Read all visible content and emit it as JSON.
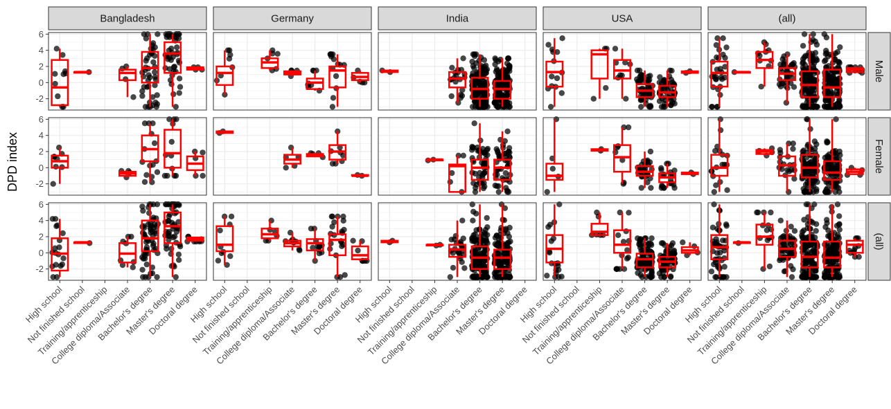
{
  "chart_data": {
    "type": "boxplot",
    "ylabel": "DPD index",
    "xlabel": "",
    "ylim": [
      -3.4,
      6.2
    ],
    "y_ticks": [
      -2,
      0,
      2,
      4,
      6
    ],
    "categories": [
      "High school",
      "Not finished school",
      "Training/apprenticeship",
      "College diploma/Associate",
      "Bachelor's degree",
      "Master's degree",
      "Doctoral degree"
    ],
    "facet_columns": [
      "Bangladesh",
      "Germany",
      "India",
      "USA",
      "(all)"
    ],
    "facet_rows": [
      "Male",
      "Female",
      "(all)"
    ],
    "colors": {
      "box": "#ff0000",
      "points": "#000000",
      "strip_fill": "#d9d9d9",
      "grid": "#ebebeb",
      "panel_border": "#333333"
    },
    "panels": [
      {
        "row": "Male",
        "col": "Bangladesh",
        "boxes": [
          {
            "cat": "High school",
            "min": -3.0,
            "q1": -2.8,
            "median": -0.6,
            "q3": 2.8,
            "max": 4.2,
            "n": 10
          },
          {
            "cat": "Not finished school",
            "min": 1.3,
            "q1": 1.3,
            "median": 1.3,
            "q3": 1.3,
            "max": 1.3,
            "n": 1
          },
          {
            "cat": "College diploma/Associate",
            "min": -1.8,
            "q1": 0.3,
            "median": 1.2,
            "q3": 1.6,
            "max": 2.0,
            "n": 4
          },
          {
            "cat": "Bachelor's degree",
            "min": -3.0,
            "q1": 0.0,
            "median": 1.8,
            "q3": 3.8,
            "max": 6.0,
            "n": 45
          },
          {
            "cat": "Master's degree",
            "min": -3.0,
            "q1": 1.2,
            "median": 3.6,
            "q3": 5.0,
            "max": 6.0,
            "n": 45
          },
          {
            "cat": "Doctoral degree",
            "min": 1.6,
            "q1": 1.6,
            "median": 1.7,
            "q3": 1.9,
            "max": 1.9,
            "n": 4
          }
        ]
      },
      {
        "row": "Male",
        "col": "Germany",
        "boxes": [
          {
            "cat": "High school",
            "min": -1.5,
            "q1": -0.3,
            "median": 1.2,
            "q3": 2.0,
            "max": 4.0,
            "n": 8
          },
          {
            "cat": "Training/apprenticeship",
            "min": 1.5,
            "q1": 1.8,
            "median": 2.5,
            "q3": 3.0,
            "max": 4.0,
            "n": 6
          },
          {
            "cat": "College diploma/Associate",
            "min": 0.8,
            "q1": 1.0,
            "median": 1.2,
            "q3": 1.4,
            "max": 1.5,
            "n": 4
          },
          {
            "cat": "Bachelor's degree",
            "min": -1.0,
            "q1": -0.8,
            "median": 0.0,
            "q3": 0.5,
            "max": 1.5,
            "n": 8
          },
          {
            "cat": "Master's degree",
            "min": -3.0,
            "q1": -0.6,
            "median": 1.5,
            "q3": 2.0,
            "max": 3.5,
            "n": 14
          },
          {
            "cat": "Doctoral degree",
            "min": 0.0,
            "q1": 0.3,
            "median": 0.7,
            "q3": 1.2,
            "max": 1.5,
            "n": 5
          }
        ]
      },
      {
        "row": "Male",
        "col": "India",
        "boxes": [
          {
            "cat": "High school",
            "min": 1.3,
            "q1": 1.3,
            "median": 1.4,
            "q3": 1.5,
            "max": 1.5,
            "n": 2
          },
          {
            "cat": "College diploma/Associate",
            "min": -2.5,
            "q1": -0.6,
            "median": 0.5,
            "q3": 1.3,
            "max": 3.0,
            "n": 20
          },
          {
            "cat": "Bachelor's degree",
            "min": -3.0,
            "q1": -2.0,
            "median": -0.8,
            "q3": 0.6,
            "max": 3.5,
            "n": 200
          },
          {
            "cat": "Master's degree",
            "min": -3.0,
            "q1": -2.0,
            "median": -0.8,
            "q3": 0.2,
            "max": 3.0,
            "n": 200
          }
        ]
      },
      {
        "row": "Male",
        "col": "USA",
        "boxes": [
          {
            "cat": "High school",
            "min": -3.0,
            "q1": -0.5,
            "median": 1.3,
            "q3": 2.6,
            "max": 5.5,
            "n": 14
          },
          {
            "cat": "Training/apprenticeship",
            "min": -2.0,
            "q1": 0.5,
            "median": 3.5,
            "q3": 4.0,
            "max": 4.2,
            "n": 4
          },
          {
            "cat": "College diploma/Associate",
            "min": -2.0,
            "q1": 0.5,
            "median": 1.5,
            "q3": 2.8,
            "max": 4.2,
            "n": 8
          },
          {
            "cat": "Bachelor's degree",
            "min": -3.0,
            "q1": -1.8,
            "median": -1.0,
            "q3": -0.2,
            "max": 1.5,
            "n": 60
          },
          {
            "cat": "Master's degree",
            "min": -3.0,
            "q1": -1.8,
            "median": -1.2,
            "q3": -0.4,
            "max": 1.5,
            "n": 50
          },
          {
            "cat": "Doctoral degree",
            "min": 1.2,
            "q1": 1.2,
            "median": 1.3,
            "q3": 1.4,
            "max": 1.4,
            "n": 2
          }
        ]
      },
      {
        "row": "Male",
        "col": "(all)",
        "boxes": [
          {
            "cat": "High school",
            "min": -3.0,
            "q1": -0.5,
            "median": 1.2,
            "q3": 2.6,
            "max": 5.5,
            "n": 30
          },
          {
            "cat": "Not finished school",
            "min": 1.3,
            "q1": 1.3,
            "median": 1.3,
            "q3": 1.3,
            "max": 1.3,
            "n": 1
          },
          {
            "cat": "Training/apprenticeship",
            "min": -0.5,
            "q1": 1.8,
            "median": 2.8,
            "q3": 3.8,
            "max": 5.0,
            "n": 10
          },
          {
            "cat": "College diploma/Associate",
            "min": -2.5,
            "q1": 0.3,
            "median": 1.1,
            "q3": 1.8,
            "max": 3.5,
            "n": 35
          },
          {
            "cat": "Bachelor's degree",
            "min": -3.0,
            "q1": -1.8,
            "median": -0.3,
            "q3": 1.4,
            "max": 6.0,
            "n": 300
          },
          {
            "cat": "Master's degree",
            "min": -3.0,
            "q1": -1.8,
            "median": -0.6,
            "q3": 1.6,
            "max": 6.0,
            "n": 300
          },
          {
            "cat": "Doctoral degree",
            "min": 1.2,
            "q1": 1.3,
            "median": 1.6,
            "q3": 1.8,
            "max": 1.9,
            "n": 10
          }
        ]
      },
      {
        "row": "Female",
        "col": "Bangladesh",
        "boxes": [
          {
            "cat": "High school",
            "min": -2.0,
            "q1": 0.0,
            "median": 0.8,
            "q3": 1.5,
            "max": 2.5,
            "n": 8
          },
          {
            "cat": "College diploma/Associate",
            "min": -1.2,
            "q1": -1.0,
            "median": -0.7,
            "q3": -0.5,
            "max": -0.4,
            "n": 4
          },
          {
            "cat": "Bachelor's degree",
            "min": -1.8,
            "q1": 0.8,
            "median": 2.3,
            "q3": 4.0,
            "max": 5.5,
            "n": 15
          },
          {
            "cat": "Master's degree",
            "min": -1.0,
            "q1": 0.0,
            "median": 1.8,
            "q3": 4.7,
            "max": 6.0,
            "n": 12
          },
          {
            "cat": "Doctoral degree",
            "min": -1.0,
            "q1": -0.3,
            "median": 0.5,
            "q3": 1.4,
            "max": 2.0,
            "n": 5
          }
        ]
      },
      {
        "row": "Female",
        "col": "Germany",
        "boxes": [
          {
            "cat": "High school",
            "min": 4.3,
            "q1": 4.3,
            "median": 4.4,
            "q3": 4.5,
            "max": 4.5,
            "n": 2
          },
          {
            "cat": "College diploma/Associate",
            "min": 0.0,
            "q1": 0.5,
            "median": 1.0,
            "q3": 1.6,
            "max": 2.5,
            "n": 5
          },
          {
            "cat": "Bachelor's degree",
            "min": 1.3,
            "q1": 1.4,
            "median": 1.6,
            "q3": 1.7,
            "max": 1.8,
            "n": 4
          },
          {
            "cat": "Master's degree",
            "min": 0.5,
            "q1": 1.0,
            "median": 2.0,
            "q3": 2.8,
            "max": 4.5,
            "n": 8
          },
          {
            "cat": "Doctoral degree",
            "min": -1.0,
            "q1": -1.0,
            "median": -1.0,
            "q3": -0.9,
            "max": -0.9,
            "n": 2
          }
        ]
      },
      {
        "row": "Female",
        "col": "India",
        "boxes": [
          {
            "cat": "Training/apprenticeship",
            "min": 0.9,
            "q1": 0.9,
            "median": 1.0,
            "q3": 1.0,
            "max": 1.0,
            "n": 2
          },
          {
            "cat": "College diploma/Associate",
            "min": -3.0,
            "q1": -3.0,
            "median": 0.2,
            "q3": 0.4,
            "max": 1.5,
            "n": 5
          },
          {
            "cat": "Bachelor's degree",
            "min": -3.0,
            "q1": -1.5,
            "median": 0.0,
            "q3": 1.0,
            "max": 5.5,
            "n": 50
          },
          {
            "cat": "Master's degree",
            "min": -3.0,
            "q1": -1.5,
            "median": 0.0,
            "q3": 1.0,
            "max": 4.5,
            "n": 50
          }
        ]
      },
      {
        "row": "Female",
        "col": "USA",
        "boxes": [
          {
            "cat": "High school",
            "min": -3.0,
            "q1": -1.5,
            "median": -1.0,
            "q3": 0.5,
            "max": 6.0,
            "n": 5
          },
          {
            "cat": "Training/apprenticeship",
            "min": 2.1,
            "q1": 2.1,
            "median": 2.2,
            "q3": 2.3,
            "max": 2.3,
            "n": 2
          },
          {
            "cat": "College diploma/Associate",
            "min": -2.0,
            "q1": -0.5,
            "median": 1.3,
            "q3": 2.8,
            "max": 5.0,
            "n": 8
          },
          {
            "cat": "Bachelor's degree",
            "min": -2.5,
            "q1": -1.0,
            "median": -0.5,
            "q3": 0.2,
            "max": 2.0,
            "n": 30
          },
          {
            "cat": "Master's degree",
            "min": -2.5,
            "q1": -1.8,
            "median": -1.2,
            "q3": -0.7,
            "max": 0.5,
            "n": 20
          },
          {
            "cat": "Doctoral degree",
            "min": -0.8,
            "q1": -0.8,
            "median": -0.7,
            "q3": -0.6,
            "max": -0.6,
            "n": 2
          }
        ]
      },
      {
        "row": "Female",
        "col": "(all)",
        "boxes": [
          {
            "cat": "High school",
            "min": -3.0,
            "q1": -1.0,
            "median": 0.0,
            "q3": 1.6,
            "max": 6.0,
            "n": 18
          },
          {
            "cat": "Training/apprenticeship",
            "min": 1.5,
            "q1": 1.7,
            "median": 2.0,
            "q3": 2.2,
            "max": 2.4,
            "n": 4
          },
          {
            "cat": "College diploma/Associate",
            "min": -3.0,
            "q1": -1.0,
            "median": 0.3,
            "q3": 1.4,
            "max": 3.0,
            "n": 20
          },
          {
            "cat": "Bachelor's degree",
            "min": -3.0,
            "q1": -1.2,
            "median": 0.0,
            "q3": 1.6,
            "max": 6.0,
            "n": 100
          },
          {
            "cat": "Master's degree",
            "min": -3.0,
            "q1": -1.5,
            "median": -0.6,
            "q3": 0.8,
            "max": 6.0,
            "n": 90
          },
          {
            "cat": "Doctoral degree",
            "min": -0.9,
            "q1": -0.8,
            "median": -0.5,
            "q3": -0.2,
            "max": 0.0,
            "n": 4
          }
        ]
      },
      {
        "row": "(all)",
        "col": "Bangladesh",
        "boxes": [
          {
            "cat": "High school",
            "min": -3.0,
            "q1": -2.2,
            "median": -0.1,
            "q3": 1.8,
            "max": 4.2,
            "n": 18
          },
          {
            "cat": "Not finished school",
            "min": 1.2,
            "q1": 1.2,
            "median": 1.3,
            "q3": 1.3,
            "max": 1.3,
            "n": 1
          },
          {
            "cat": "College diploma/Associate",
            "min": -1.8,
            "q1": -1.2,
            "median": -0.1,
            "q3": 1.2,
            "max": 2.0,
            "n": 8
          },
          {
            "cat": "Bachelor's degree",
            "min": -3.0,
            "q1": 0.2,
            "median": 1.8,
            "q3": 4.0,
            "max": 6.0,
            "n": 60
          },
          {
            "cat": "Master's degree",
            "min": -3.0,
            "q1": 1.2,
            "median": 3.3,
            "q3": 5.0,
            "max": 6.0,
            "n": 57
          },
          {
            "cat": "Doctoral degree",
            "min": 1.4,
            "q1": 1.5,
            "median": 1.7,
            "q3": 1.9,
            "max": 2.0,
            "n": 9
          }
        ]
      },
      {
        "row": "(all)",
        "col": "Germany",
        "boxes": [
          {
            "cat": "High school",
            "min": -1.5,
            "q1": 0.2,
            "median": 1.0,
            "q3": 3.3,
            "max": 4.5,
            "n": 10
          },
          {
            "cat": "Training/apprenticeship",
            "min": 1.5,
            "q1": 1.8,
            "median": 2.3,
            "q3": 3.0,
            "max": 4.0,
            "n": 6
          },
          {
            "cat": "College diploma/Associate",
            "min": 0.3,
            "q1": 0.8,
            "median": 1.2,
            "q3": 1.5,
            "max": 2.5,
            "n": 9
          },
          {
            "cat": "Bachelor's degree",
            "min": -1.0,
            "q1": 0.3,
            "median": 1.2,
            "q3": 1.7,
            "max": 3.0,
            "n": 12
          },
          {
            "cat": "Master's degree",
            "min": -3.0,
            "q1": -0.3,
            "median": 1.6,
            "q3": 2.3,
            "max": 4.5,
            "n": 22
          },
          {
            "cat": "Doctoral degree",
            "min": -1.0,
            "q1": -0.8,
            "median": -0.3,
            "q3": 0.8,
            "max": 1.5,
            "n": 7
          }
        ]
      },
      {
        "row": "(all)",
        "col": "India",
        "boxes": [
          {
            "cat": "High school",
            "min": 1.3,
            "q1": 1.3,
            "median": 1.4,
            "q3": 1.5,
            "max": 1.5,
            "n": 2
          },
          {
            "cat": "Training/apprenticeship",
            "min": 0.9,
            "q1": 0.9,
            "median": 1.0,
            "q3": 1.0,
            "max": 1.0,
            "n": 2
          },
          {
            "cat": "College diploma/Associate",
            "min": -3.0,
            "q1": -0.5,
            "median": 0.4,
            "q3": 1.0,
            "max": 4.0,
            "n": 25
          },
          {
            "cat": "Bachelor's degree",
            "min": -3.0,
            "q1": -2.0,
            "median": -0.6,
            "q3": 0.8,
            "max": 6.0,
            "n": 250
          },
          {
            "cat": "Master's degree",
            "min": -3.0,
            "q1": -2.0,
            "median": -0.6,
            "q3": 0.4,
            "max": 6.0,
            "n": 250
          }
        ]
      },
      {
        "row": "(all)",
        "col": "USA",
        "boxes": [
          {
            "cat": "High school",
            "min": -3.0,
            "q1": -1.2,
            "median": 0.5,
            "q3": 2.2,
            "max": 6.0,
            "n": 19
          },
          {
            "cat": "Training/apprenticeship",
            "min": 2.2,
            "q1": 2.2,
            "median": 2.6,
            "q3": 3.6,
            "max": 5.0,
            "n": 6
          },
          {
            "cat": "College diploma/Associate",
            "min": -2.0,
            "q1": 0.0,
            "median": 1.0,
            "q3": 2.8,
            "max": 5.0,
            "n": 16
          },
          {
            "cat": "Bachelor's degree",
            "min": -3.0,
            "q1": -1.8,
            "median": -0.8,
            "q3": -0.1,
            "max": 1.8,
            "n": 90
          },
          {
            "cat": "Master's degree",
            "min": -3.0,
            "q1": -1.8,
            "median": -1.1,
            "q3": -0.5,
            "max": 1.2,
            "n": 70
          },
          {
            "cat": "Doctoral degree",
            "min": -0.3,
            "q1": 0.0,
            "median": 0.3,
            "q3": 0.7,
            "max": 1.3,
            "n": 4
          }
        ]
      },
      {
        "row": "(all)",
        "col": "(all)",
        "boxes": [
          {
            "cat": "High school",
            "min": -3.0,
            "q1": -0.8,
            "median": 0.7,
            "q3": 2.2,
            "max": 6.0,
            "n": 48
          },
          {
            "cat": "Not finished school",
            "min": 1.2,
            "q1": 1.2,
            "median": 1.3,
            "q3": 1.3,
            "max": 1.3,
            "n": 1
          },
          {
            "cat": "Training/apprenticeship",
            "min": -2.0,
            "q1": 1.0,
            "median": 2.0,
            "q3": 3.5,
            "max": 5.0,
            "n": 14
          },
          {
            "cat": "College diploma/Associate",
            "min": -3.0,
            "q1": -0.5,
            "median": 0.5,
            "q3": 1.5,
            "max": 4.0,
            "n": 55
          },
          {
            "cat": "Bachelor's degree",
            "min": -3.0,
            "q1": -1.8,
            "median": -0.5,
            "q3": 1.4,
            "max": 6.0,
            "n": 400
          },
          {
            "cat": "Master's degree",
            "min": -3.0,
            "q1": -1.8,
            "median": -0.6,
            "q3": 1.4,
            "max": 6.0,
            "n": 390
          },
          {
            "cat": "Doctoral degree",
            "min": -0.5,
            "q1": 0.0,
            "median": 1.0,
            "q3": 1.5,
            "max": 1.8,
            "n": 12
          }
        ]
      }
    ]
  }
}
